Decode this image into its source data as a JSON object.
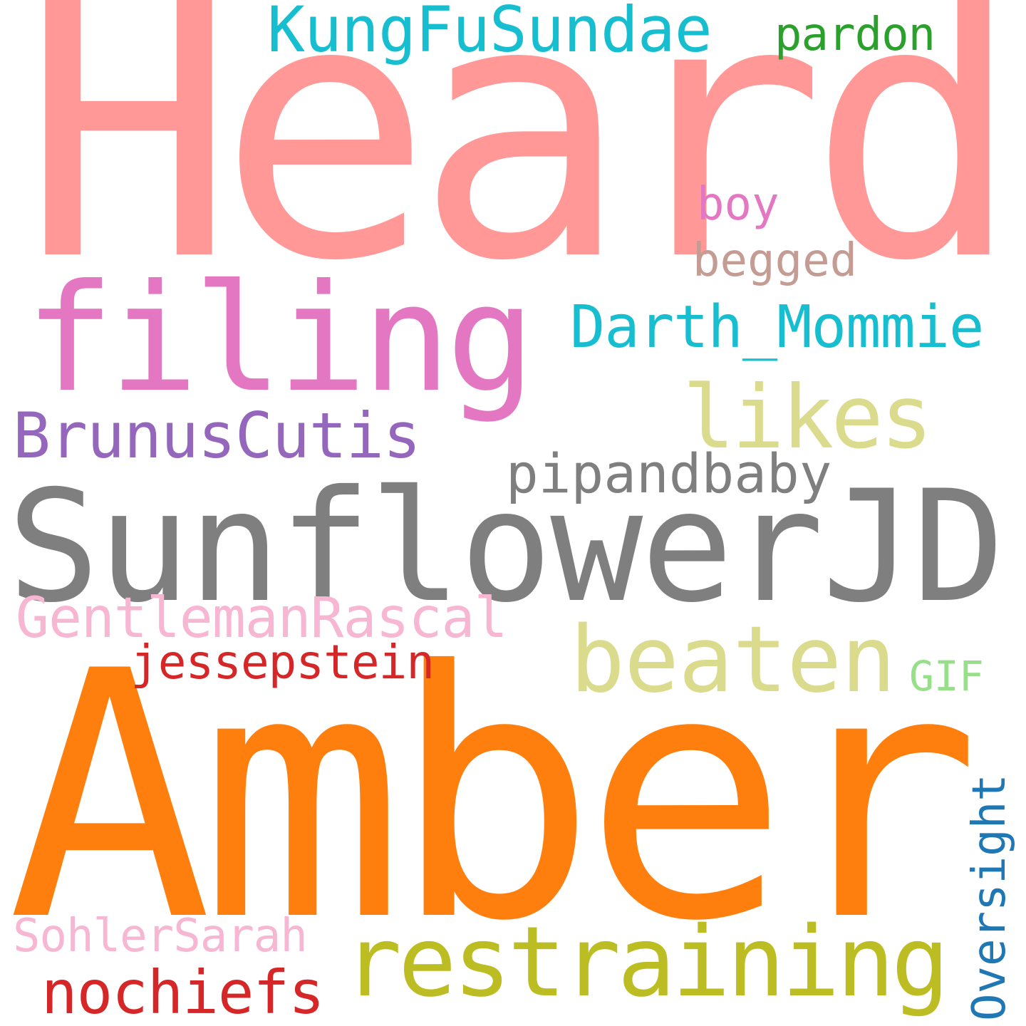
{
  "words": [
    {
      "id": "heard",
      "text": "Heard",
      "color": "#ff9896"
    },
    {
      "id": "amber",
      "text": "Amber",
      "color": "#ff7f0e"
    },
    {
      "id": "sunflowerjd",
      "text": "SunflowerJD",
      "color": "#7f7f7f"
    },
    {
      "id": "filing",
      "text": "filing",
      "color": "#e377c2"
    },
    {
      "id": "restraining",
      "text": "restraining",
      "color": "#bcbd22"
    },
    {
      "id": "beaten",
      "text": "beaten",
      "color": "#dbdb8d"
    },
    {
      "id": "likes",
      "text": "likes",
      "color": "#dbdb8d"
    },
    {
      "id": "kungfusundae",
      "text": "KungFuSundae",
      "color": "#17becf"
    },
    {
      "id": "darth-mommie",
      "text": "Darth_Mommie",
      "color": "#17becf"
    },
    {
      "id": "brunuscutis",
      "text": "BrunusCutis",
      "color": "#9467bd"
    },
    {
      "id": "pipandbaby",
      "text": "pipandbaby",
      "color": "#7f7f7f"
    },
    {
      "id": "gentlemanrascal",
      "text": "GentlemanRascal",
      "color": "#f7b6d2"
    },
    {
      "id": "nochiefs",
      "text": "nochiefs",
      "color": "#d62728"
    },
    {
      "id": "jessepstein",
      "text": "jessepstein",
      "color": "#d62728"
    },
    {
      "id": "oversight",
      "text": "Oversight",
      "color": "#1f77b4"
    },
    {
      "id": "sohlersarah",
      "text": "SohlerSarah",
      "color": "#f7b6d2"
    },
    {
      "id": "pardon",
      "text": "pardon",
      "color": "#2ca02c"
    },
    {
      "id": "begged",
      "text": "begged",
      "color": "#c49c94"
    },
    {
      "id": "boy",
      "text": "boy",
      "color": "#e377c2"
    },
    {
      "id": "gif",
      "text": "GIF",
      "color": "#98df8a"
    }
  ]
}
